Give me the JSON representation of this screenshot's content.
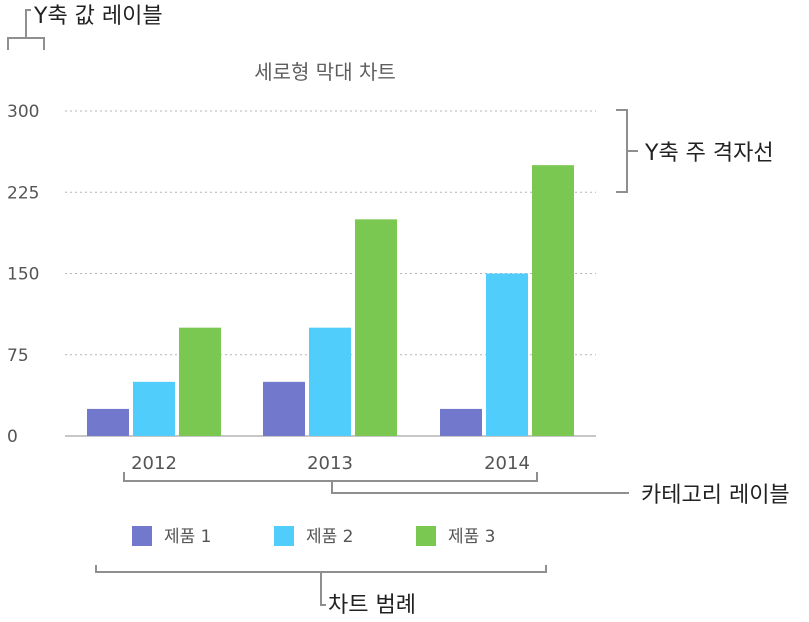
{
  "colors": {
    "series": [
      "#7278cc",
      "#51cdfb",
      "#7ac852"
    ],
    "grid": "#b5b5b5",
    "axis": "#8f8f8f",
    "bracket": "#8f8f8f",
    "text": "#555555",
    "annotation_text": "#222222"
  },
  "chart_data": {
    "type": "bar",
    "title": "세로형 막대 차트",
    "categories": [
      "2012",
      "2013",
      "2014"
    ],
    "series": [
      {
        "name": "제품 1",
        "values": [
          25,
          50,
          25
        ]
      },
      {
        "name": "제품 2",
        "values": [
          50,
          100,
          150
        ]
      },
      {
        "name": "제품 3",
        "values": [
          100,
          200,
          250
        ]
      }
    ],
    "ylim": [
      0,
      300
    ],
    "y_ticks": [
      "300",
      "225",
      "150",
      "75",
      "0"
    ],
    "y_tick_values": [
      300,
      225,
      150,
      75,
      0
    ],
    "grid": true,
    "legend": "bottom"
  },
  "annotations": {
    "y_value_label": "Y축 값 레이블",
    "y_major_gridline": "Y축 주 격자선",
    "category_label": "카테고리 레이블",
    "chart_legend": "차트 범례"
  }
}
